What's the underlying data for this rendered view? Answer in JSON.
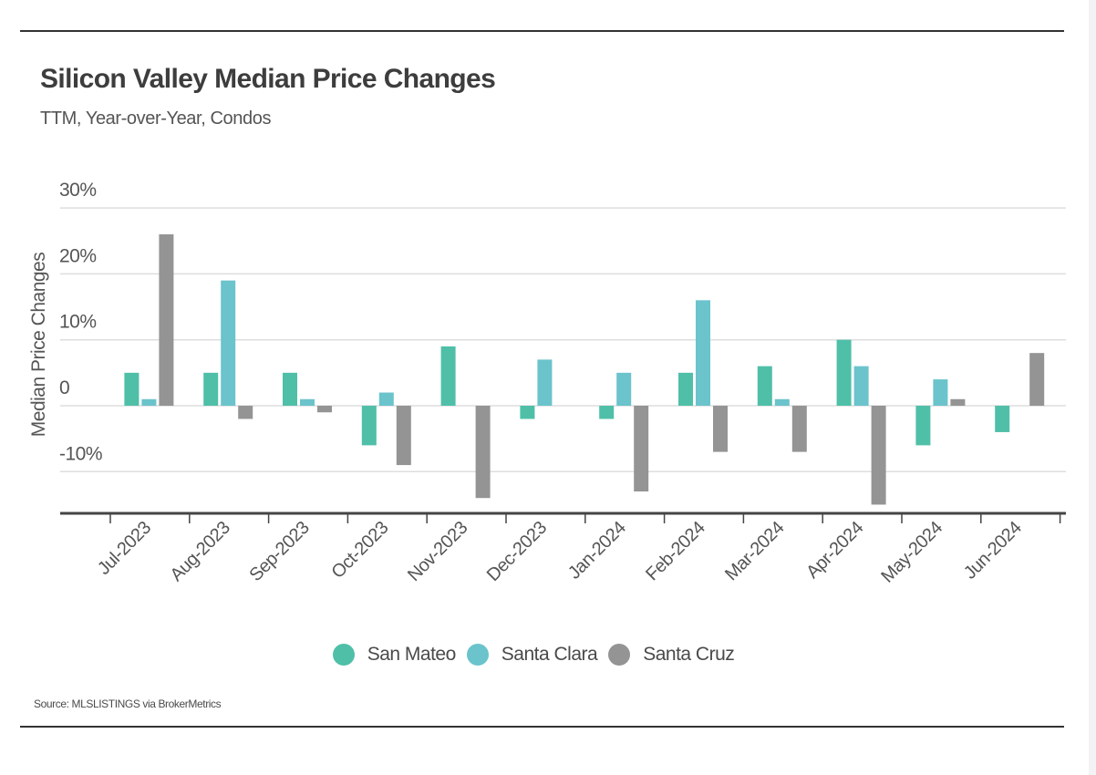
{
  "header": {
    "title": "Silicon Valley Median Price Changes",
    "subtitle": "TTM, Year-over-Year, Condos"
  },
  "footer": {
    "source": "Source:  MLSLISTINGS via BrokerMetrics"
  },
  "chart_data": {
    "type": "bar",
    "title": "Silicon Valley Median Price Changes",
    "subtitle": "TTM, Year-over-Year, Condos",
    "xlabel": "",
    "ylabel": "Median Price Changes",
    "ylim": [
      -16.3,
      30
    ],
    "yticks": [
      30,
      20,
      10,
      0,
      -10
    ],
    "ytick_labels": [
      "30%",
      "20%",
      "10%",
      "0",
      "-10%"
    ],
    "grid": true,
    "legend_position": "bottom-center",
    "categories": [
      "Jul-2023",
      "Aug-2023",
      "Sep-2023",
      "Oct-2023",
      "Nov-2023",
      "Dec-2023",
      "Jan-2024",
      "Feb-2024",
      "Mar-2024",
      "Apr-2024",
      "May-2024",
      "Jun-2024"
    ],
    "series": [
      {
        "name": "San Mateo",
        "color": "#4fbfa8",
        "values": [
          5,
          5,
          5,
          -6,
          9,
          -2,
          -2,
          5,
          6,
          10,
          -6,
          -4
        ]
      },
      {
        "name": "Santa Clara",
        "color": "#6bc3cc",
        "values": [
          1,
          19,
          1,
          2,
          0,
          7,
          5,
          16,
          1,
          6,
          4,
          0
        ]
      },
      {
        "name": "Santa Cruz",
        "color": "#949494",
        "values": [
          26,
          -2,
          -1,
          -9,
          -14,
          0,
          -13,
          -7,
          -7,
          -15,
          1,
          8
        ]
      }
    ]
  }
}
